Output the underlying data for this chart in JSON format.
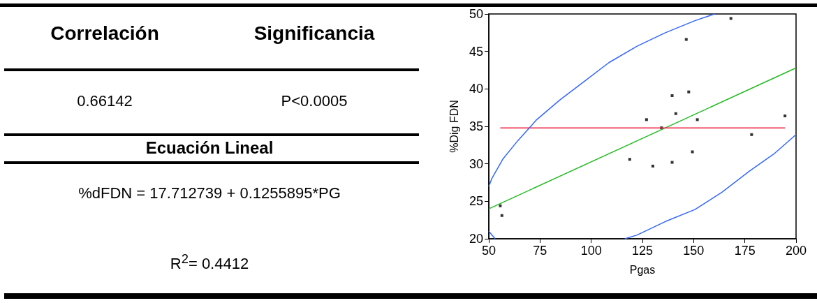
{
  "chart_data": [
    {
      "type": "other",
      "annotations": [
        "Correlación",
        "Significancia",
        "0.66142",
        "P<0.0005",
        "Ecuación Lineal",
        "%dFDN = 17.712739 + 0.1255895*PG",
        "R$^{2}$= 0.4412"
      ]
    },
    {
      "type": "scatter",
      "xlabel": "Pgas",
      "ylabel": "%Dig FDN",
      "xlim": [
        50,
        200
      ],
      "ylim": [
        20,
        50
      ],
      "xticks": [
        50,
        75,
        100,
        125,
        150,
        175,
        200
      ],
      "yticks": [
        20,
        25,
        30,
        35,
        40,
        45,
        50
      ],
      "grid": false,
      "series": [
        {
          "type": "scatter",
          "marker": "square",
          "color": "#000000",
          "x": [
            55.6,
            56.4,
            118.8,
            127.0,
            130.1,
            134.3,
            139.5,
            139.5,
            141.3,
            146.4,
            147.6,
            149.4,
            151.8,
            168.2,
            178.3,
            194.6
          ],
          "values": [
            24.4,
            23.1,
            30.6,
            35.9,
            29.7,
            34.8,
            39.1,
            30.2,
            36.7,
            46.6,
            39.6,
            31.6,
            35.9,
            49.4,
            33.9,
            36.4
          ]
        },
        {
          "type": "line",
          "color": "#22bb22",
          "x": [
            50,
            200
          ],
          "values": [
            24.0,
            42.8
          ]
        },
        {
          "type": "line",
          "color": "#ee2244",
          "x": [
            55.6,
            194.6
          ],
          "values": [
            34.8,
            34.8
          ]
        },
        {
          "type": "line",
          "color": "#3366ff",
          "x": [
            50,
            51.6,
            57,
            64.2,
            73.4,
            84.6,
            96.6,
            108.6,
            122.4,
            136.2,
            150.6,
            160.3
          ],
          "values": [
            27.0,
            28.1,
            30.7,
            33.1,
            35.9,
            38.5,
            41.0,
            43.5,
            45.7,
            47.5,
            49.1,
            50.0
          ]
        },
        {
          "type": "line",
          "color": "#3366ff",
          "x": [
            50,
            53.1
          ],
          "values": [
            21.0,
            20.0
          ]
        },
        {
          "type": "line",
          "color": "#3366ff",
          "x": [
            116.4,
            122.4,
            136.2,
            150.6,
            163.8,
            177.1,
            189.1,
            200
          ],
          "values": [
            20.0,
            20.5,
            22.3,
            23.9,
            26.2,
            29.0,
            31.3,
            33.9
          ]
        }
      ]
    }
  ]
}
